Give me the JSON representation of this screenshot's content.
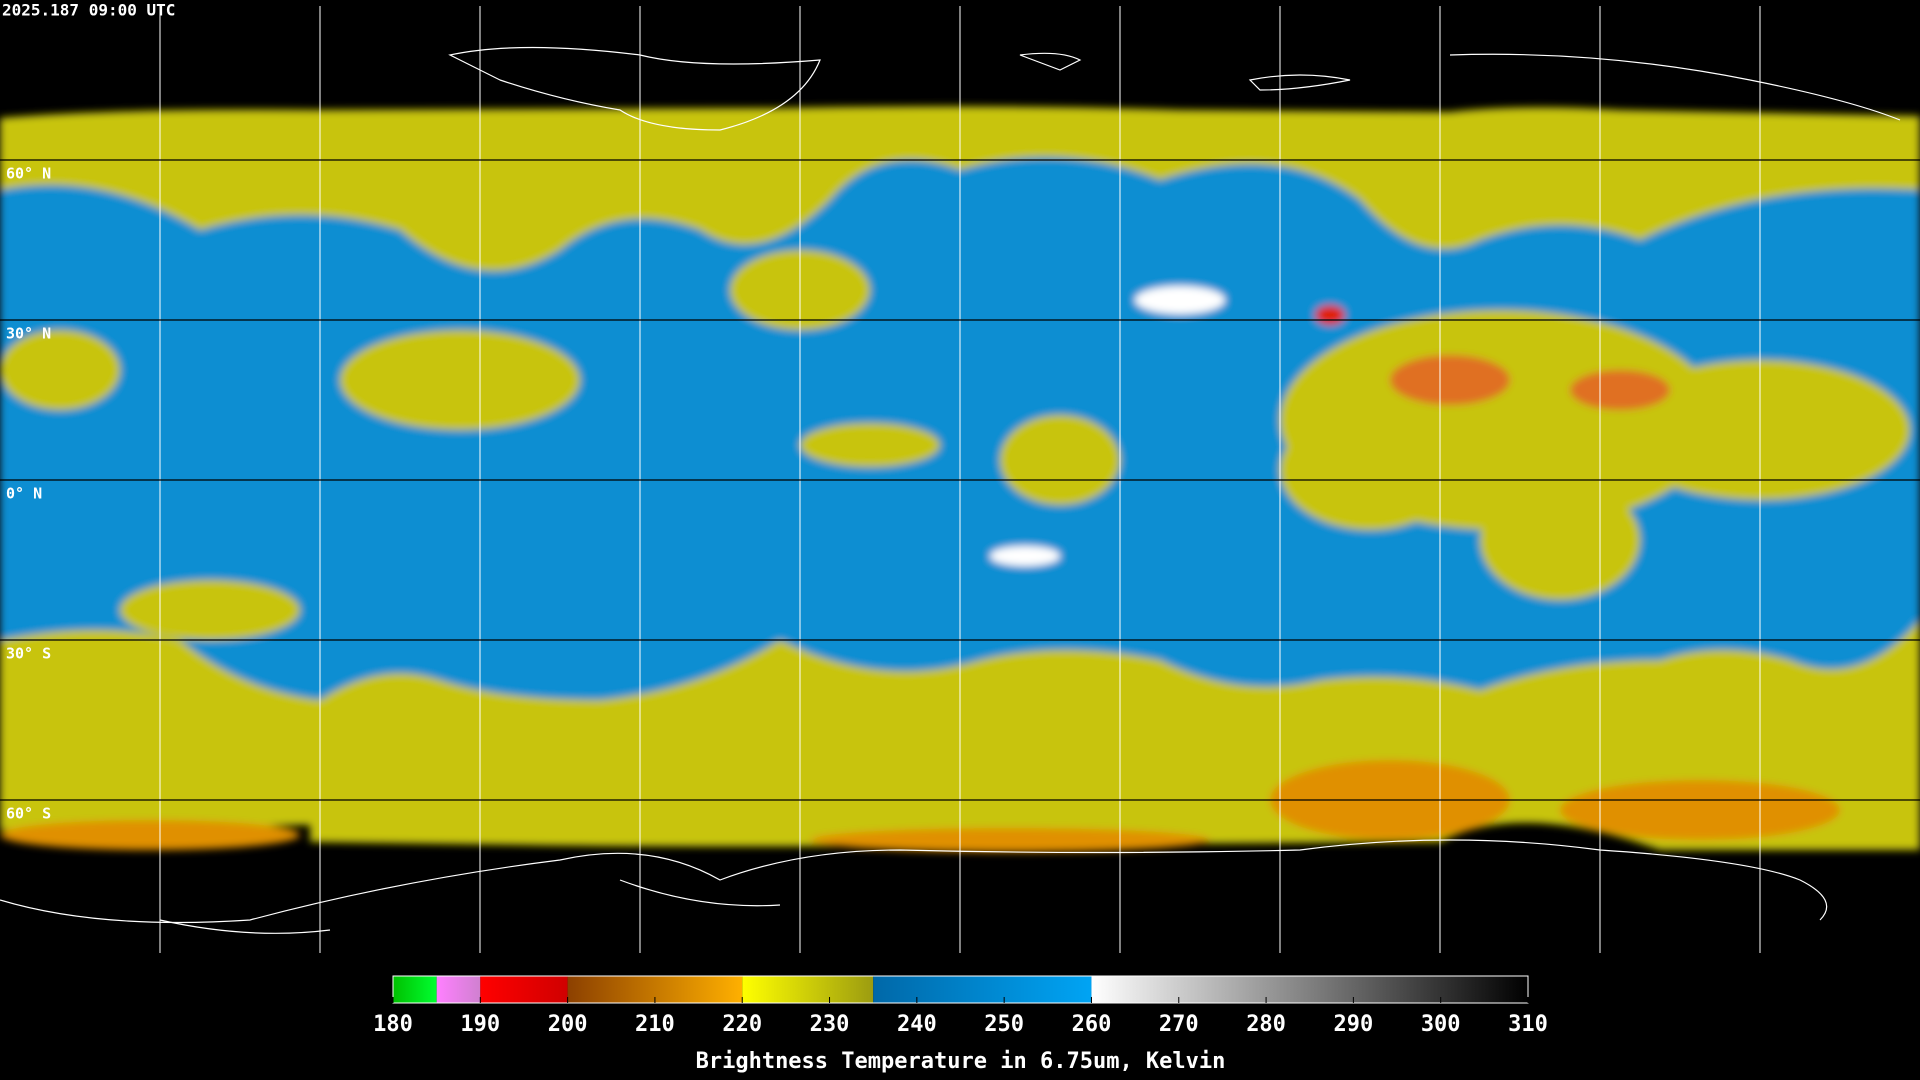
{
  "header": {
    "timestamp": "2025.187 09:00 UTC"
  },
  "map": {
    "lat_labels": [
      "60° N",
      "30° N",
      "0° N",
      "30° S",
      "60° S"
    ]
  },
  "colorbar": {
    "title": "Brightness Temperature in 6.75um, Kelvin",
    "min": 180,
    "max": 310,
    "ticks": [
      180,
      190,
      200,
      210,
      220,
      230,
      240,
      250,
      260,
      270,
      280,
      290,
      300,
      310
    ],
    "segments": [
      {
        "from": 180,
        "to": 185,
        "colors": [
          "#00c000",
          "#00ff30"
        ]
      },
      {
        "from": 185,
        "to": 190,
        "colors": [
          "#ff80ff",
          "#d080d0"
        ]
      },
      {
        "from": 190,
        "to": 200,
        "colors": [
          "#ff0000",
          "#d00000"
        ]
      },
      {
        "from": 200,
        "to": 220,
        "colors": [
          "#8c4000",
          "#ffb000"
        ]
      },
      {
        "from": 220,
        "to": 235,
        "colors": [
          "#ffff00",
          "#9c9c10"
        ]
      },
      {
        "from": 235,
        "to": 260,
        "colors": [
          "#0068a8",
          "#00a4f4"
        ]
      },
      {
        "from": 260,
        "to": 310,
        "colors": [
          "#ffffff",
          "#000000"
        ]
      }
    ]
  }
}
